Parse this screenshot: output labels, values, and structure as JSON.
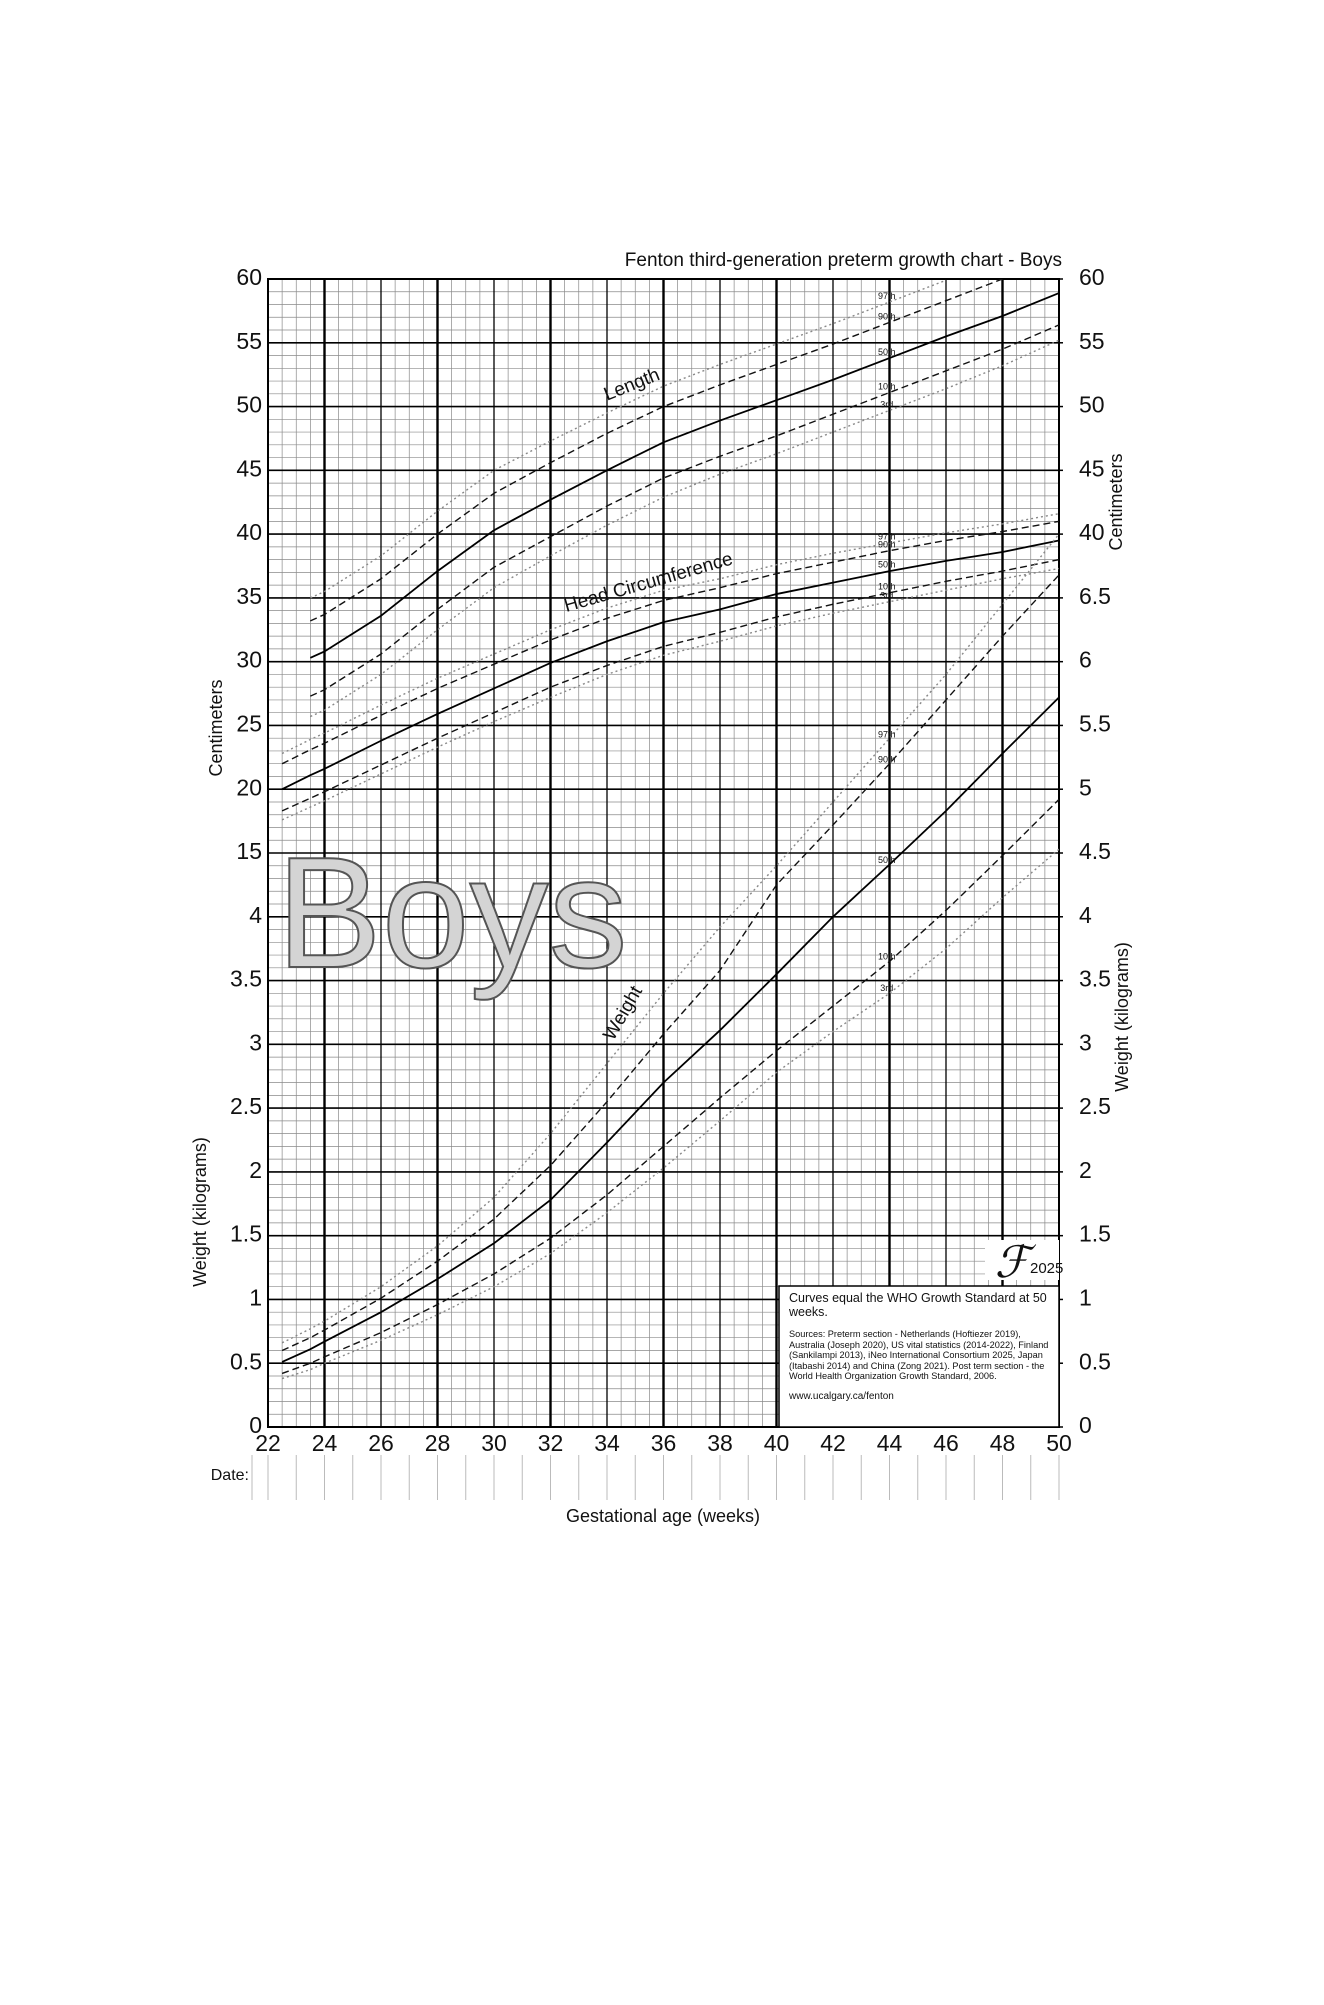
{
  "chart_data": {
    "type": "line",
    "title": "Fenton third-generation preterm growth chart - Boys",
    "watermark": "Boys",
    "x_label": "Gestational age (weeks)",
    "y_label_left_top": "Centimeters",
    "y_label_left_bottom": "Weight (kilograms)",
    "y_label_right_top": "Centimeters",
    "y_label_right_bottom": "Weight (kilograms)",
    "date_label": "Date:",
    "xlim": [
      22,
      50
    ],
    "xticks": [
      22,
      24,
      26,
      28,
      30,
      32,
      34,
      36,
      38,
      40,
      42,
      44,
      46,
      48,
      50
    ],
    "ylim": [
      -30,
      60
    ],
    "y2lim": [
      0,
      9
    ],
    "yticks": [
      15,
      20,
      25,
      30,
      35,
      40,
      45,
      50,
      55,
      60
    ],
    "y2ticks": [
      0,
      0.5,
      1,
      1.5,
      2,
      2.5,
      3,
      3.5,
      4
    ],
    "yticks_right": [
      40,
      45,
      50,
      55,
      60
    ],
    "y2ticks_right": [
      0,
      0.5,
      1,
      1.5,
      2,
      2.5,
      3,
      3.5,
      4,
      4.5,
      5,
      5.5,
      6,
      6.5
    ],
    "grid": true,
    "x": [
      22.5,
      23.5,
      24,
      26,
      28,
      30,
      32,
      34,
      36,
      38,
      40,
      42,
      44,
      46,
      48,
      50
    ],
    "curves": [
      {
        "label": "Length",
        "axis": "y",
        "series": [
          {
            "name": "97th",
            "color": "#888888",
            "style": "dotted",
            "values": [
              null,
              35.0,
              35.5,
              38.3,
              41.8,
              45.0,
              47.3,
              49.5,
              51.6,
              53.3,
              54.9,
              56.5,
              58.2,
              59.9,
              null,
              null
            ]
          },
          {
            "name": "90th",
            "color": "#111111",
            "style": "dashed",
            "values": [
              null,
              33.2,
              33.7,
              36.5,
              40.0,
              43.2,
              45.6,
              47.9,
              50.0,
              51.7,
              53.3,
              54.9,
              56.6,
              58.3,
              60.0,
              null
            ]
          },
          {
            "name": "50th",
            "color": "#000000",
            "style": "solid",
            "values": [
              null,
              30.3,
              30.8,
              33.6,
              37.1,
              40.3,
              42.7,
              45.0,
              47.2,
              48.9,
              50.5,
              52.1,
              53.8,
              55.5,
              57.1,
              58.9
            ]
          },
          {
            "name": "10th",
            "color": "#111111",
            "style": "dashed",
            "values": [
              null,
              27.3,
              27.8,
              30.6,
              34.1,
              37.4,
              39.8,
              42.2,
              44.4,
              46.1,
              47.7,
              49.4,
              51.1,
              52.8,
              54.5,
              56.4
            ]
          },
          {
            "name": "3rd",
            "color": "#888888",
            "style": "dotted",
            "values": [
              null,
              25.7,
              26.2,
              29.0,
              32.5,
              35.8,
              38.3,
              40.7,
              42.9,
              44.7,
              46.3,
              48.0,
              49.7,
              51.4,
              53.2,
              55.2
            ]
          }
        ]
      },
      {
        "label": "Head Circumference",
        "axis": "y",
        "series": [
          {
            "name": "97th",
            "color": "#888888",
            "style": "dotted",
            "values": [
              22.8,
              23.9,
              24.4,
              26.6,
              28.7,
              30.6,
              32.5,
              34.2,
              35.6,
              36.5,
              37.6,
              38.5,
              39.3,
              40.1,
              40.8,
              41.6
            ]
          },
          {
            "name": "90th",
            "color": "#111111",
            "style": "dashed",
            "values": [
              22.0,
              23.1,
              23.6,
              25.8,
              27.9,
              29.8,
              31.7,
              33.4,
              34.8,
              35.8,
              36.9,
              37.8,
              38.7,
              39.5,
              40.2,
              41.0
            ]
          },
          {
            "name": "50th",
            "color": "#000000",
            "style": "solid",
            "values": [
              20.0,
              21.1,
              21.6,
              23.8,
              25.9,
              27.9,
              29.9,
              31.6,
              33.1,
              34.1,
              35.3,
              36.2,
              37.1,
              37.9,
              38.6,
              39.5
            ]
          },
          {
            "name": "10th",
            "color": "#111111",
            "style": "dashed",
            "values": [
              18.3,
              19.3,
              19.8,
              21.9,
              24.0,
              26.0,
              28.0,
              29.7,
              31.2,
              32.3,
              33.5,
              34.5,
              35.4,
              36.3,
              37.1,
              38.0
            ]
          },
          {
            "name": "3rd",
            "color": "#888888",
            "style": "dotted",
            "values": [
              17.6,
              18.6,
              19.1,
              21.2,
              23.3,
              25.3,
              27.2,
              29.0,
              30.5,
              31.6,
              32.8,
              33.8,
              34.7,
              35.6,
              36.5,
              37.3
            ]
          }
        ]
      },
      {
        "label": "Weight",
        "axis": "y2",
        "series": [
          {
            "name": "97th",
            "color": "#888888",
            "style": "dotted",
            "values": [
              0.66,
              0.77,
              0.83,
              1.1,
              1.42,
              1.8,
              2.3,
              2.85,
              3.4,
              3.92,
              4.4,
              4.9,
              5.4,
              5.9,
              6.45,
              7.0
            ]
          },
          {
            "name": "90th",
            "color": "#111111",
            "style": "dashed",
            "values": [
              0.6,
              0.7,
              0.76,
              1.01,
              1.3,
              1.63,
              2.05,
              2.55,
              3.08,
              3.58,
              4.25,
              4.72,
              5.2,
              5.7,
              6.2,
              6.68
            ]
          },
          {
            "name": "50th",
            "color": "#000000",
            "style": "solid",
            "values": [
              0.51,
              0.61,
              0.67,
              0.9,
              1.16,
              1.44,
              1.78,
              2.23,
              2.7,
              3.11,
              3.55,
              4.0,
              4.41,
              4.83,
              5.28,
              5.72
            ]
          },
          {
            "name": "10th",
            "color": "#111111",
            "style": "dashed",
            "values": [
              0.42,
              0.5,
              0.55,
              0.74,
              0.96,
              1.2,
              1.48,
              1.82,
              2.2,
              2.58,
              2.95,
              3.3,
              3.65,
              4.05,
              4.48,
              4.92
            ]
          },
          {
            "name": "3rd",
            "color": "#888888",
            "style": "dotted",
            "values": [
              0.38,
              0.45,
              0.5,
              0.68,
              0.88,
              1.1,
              1.36,
              1.68,
              2.03,
              2.4,
              2.78,
              3.1,
              3.4,
              3.75,
              4.15,
              4.53
            ]
          }
        ]
      }
    ],
    "note": "Curves equal the WHO Growth Standard at 50 weeks.",
    "sources": "Sources: Preterm section - Netherlands (Hoftiezer 2019), Australia (Joseph 2020), US vital statistics (2014-2022), Finland (Sankilampi 2013), iNeo International Consortium 2025, Japan (Itabashi 2014) and China (Zong 2021). Post term section - the World Health Organization Growth Standard, 2006.",
    "url": "www.ucalgary.ca/fenton",
    "logo": "ℱ",
    "logo_year": "2025"
  }
}
